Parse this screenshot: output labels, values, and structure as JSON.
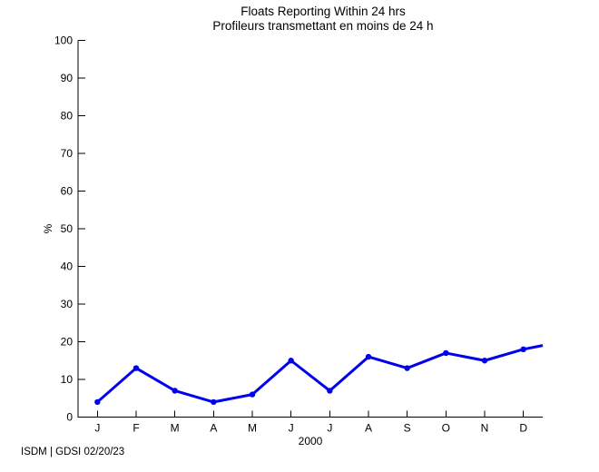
{
  "page": {
    "background_color": "#ffffff"
  },
  "header": {
    "title_line1": "Floats Reporting Within 24 hrs",
    "title_line2": "Profileurs transmettant en moins de 24 h"
  },
  "footer": {
    "credit_text": "ISDM | GDSI 02/20/23"
  },
  "colors": {
    "series_line": "#0000ee",
    "axis": "#000000",
    "text": "#000000"
  },
  "chart_data": {
    "type": "line",
    "title": "Floats Reporting Within 24 hrs",
    "subtitle": "Profileurs transmettant en moins de 24 h",
    "xlabel": "2000",
    "ylabel": "%",
    "categories": [
      "J",
      "F",
      "M",
      "A",
      "M",
      "J",
      "J",
      "A",
      "S",
      "O",
      "N",
      "D"
    ],
    "values": [
      4,
      13,
      7,
      4,
      6,
      15,
      7,
      16,
      13,
      17,
      15,
      18
    ],
    "line_clipped_at_right_edge_value": 19,
    "ylim": [
      0,
      100
    ],
    "ytick_step": 10,
    "ytick_labels": [
      "0",
      "10",
      "20",
      "30",
      "40",
      "50",
      "60",
      "70",
      "80",
      "90",
      "100"
    ],
    "grid": false,
    "legend_position": "none",
    "marker": "dot",
    "line_color": "#0000ee"
  }
}
